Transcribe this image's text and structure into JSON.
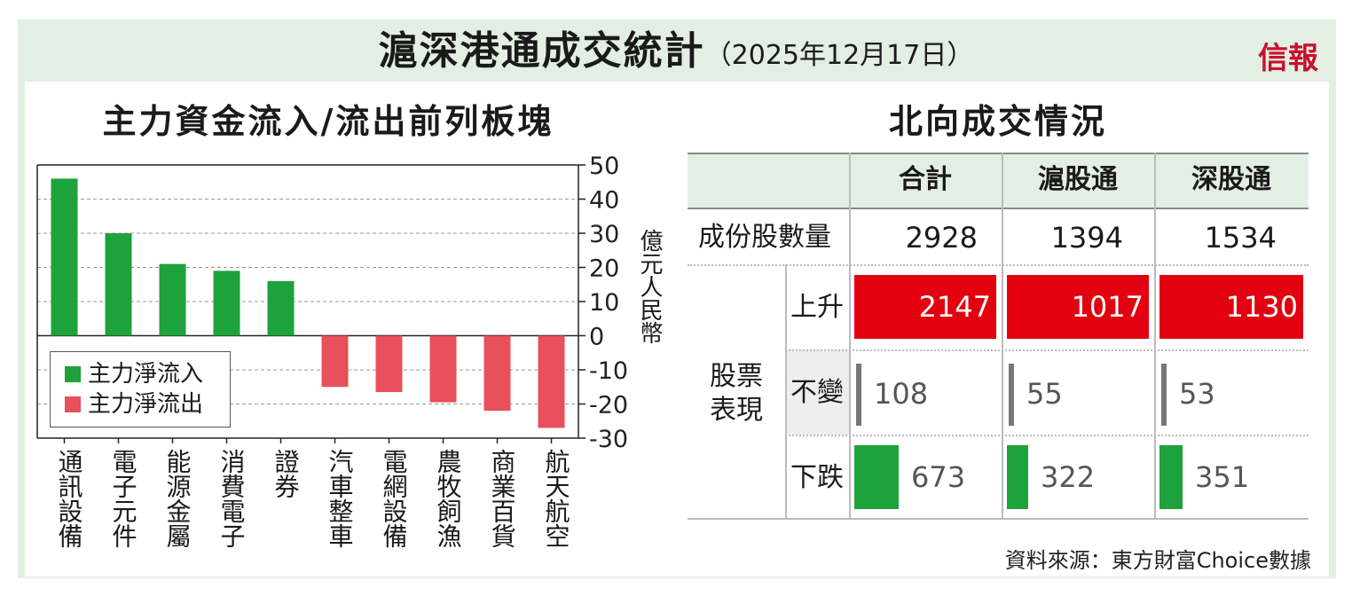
{
  "header": {
    "title": "滬深港通成交統計",
    "date": "（2025年12月17日）",
    "brand": "信報"
  },
  "left_panel": {
    "title": "主力資金流入/流出前列板塊"
  },
  "right_panel": {
    "title": "北向成交情況"
  },
  "colors": {
    "inflow": "#1ea23c",
    "outflow": "#e8505b",
    "rise": "#e3000f",
    "fall": "#1ea23c",
    "flat": "#777777",
    "band": "#e3efe3"
  },
  "chart_data": {
    "type": "bar",
    "categories": [
      "通訊設備",
      "電子元件",
      "能源金屬",
      "消費電子",
      "證券",
      "汽車整車",
      "電網設備",
      "農牧飼漁",
      "商業百貨",
      "航天航空"
    ],
    "values": [
      46,
      30,
      21,
      19,
      16,
      -15,
      -16.5,
      -19.5,
      -22,
      -27
    ],
    "series": [
      {
        "name": "主力淨流入",
        "color": "#1ea23c"
      },
      {
        "name": "主力淨流出",
        "color": "#e8505b"
      }
    ],
    "ylim": [
      -30,
      50
    ],
    "yticks": [
      50,
      40,
      30,
      20,
      10,
      0,
      -10,
      -20,
      -30
    ],
    "ylabel": "億元人民幣",
    "grid": true,
    "legend": "bottom-left"
  },
  "table": {
    "columns": [
      "合計",
      "滬股通",
      "深股通"
    ],
    "constituents_label": "成份股數量",
    "constituents": [
      "2928",
      "1394",
      "1534"
    ],
    "stock_label": "股票表現",
    "rows": [
      {
        "label": "上升",
        "values": [
          2147,
          1017,
          1130
        ]
      },
      {
        "label": "不變",
        "values": [
          108,
          55,
          53
        ]
      },
      {
        "label": "下跌",
        "values": [
          673,
          322,
          351
        ]
      }
    ]
  },
  "source": "資料來源：東方財富Choice數據"
}
